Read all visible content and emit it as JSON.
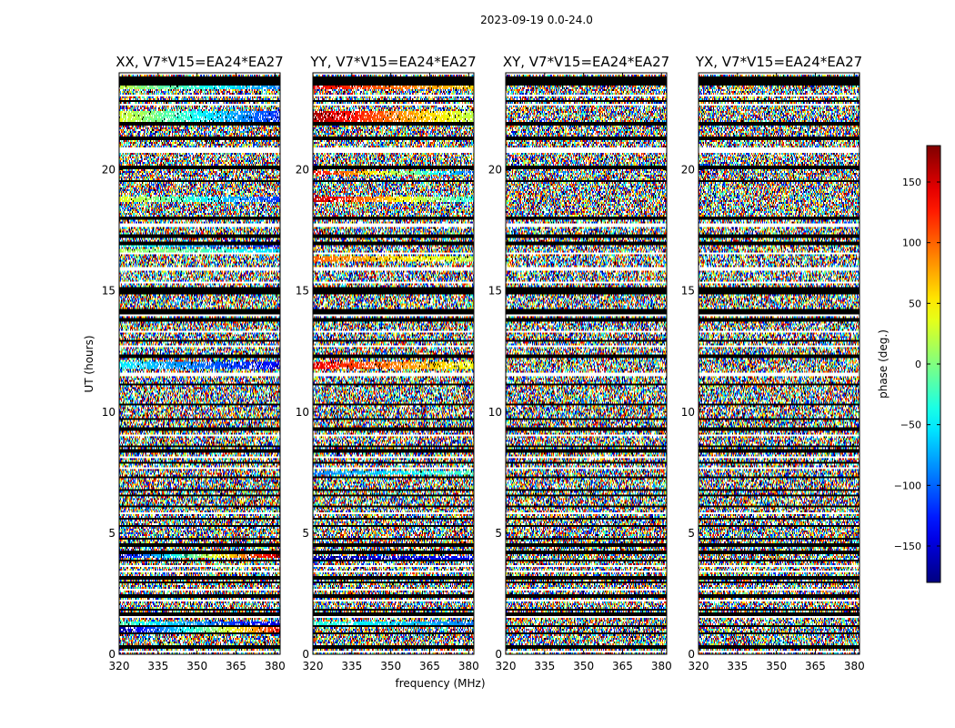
{
  "chart_data": {
    "type": "heatmap",
    "title": "2023-09-19 0.0-24.0",
    "xlabel": "frequency (MHz)",
    "ylabel": "UT (hours)",
    "xlim": [
      320,
      382
    ],
    "ylim": [
      0,
      24
    ],
    "xticks": [
      320,
      335,
      350,
      365,
      380
    ],
    "yticks": [
      0,
      5,
      10,
      15,
      20
    ],
    "colorbar": {
      "label": "phase (deg.)",
      "range": [
        -180,
        180
      ],
      "ticks": [
        150,
        100,
        50,
        0,
        -50,
        -100,
        -150
      ],
      "tick_labels": [
        "150",
        "100",
        "50",
        "0",
        "−50",
        "−100",
        "−150"
      ],
      "colormap": "jet"
    },
    "panels": [
      {
        "title": "XX, V7*V15=EA24*EA27",
        "coherent_bands": [
          {
            "t0": 23.3,
            "t1": 23.5,
            "p0": 20,
            "p1": -90
          },
          {
            "t0": 22.0,
            "t1": 22.4,
            "p0": 30,
            "p1": -120
          },
          {
            "t0": 18.7,
            "t1": 18.9,
            "p0": 40,
            "p1": -120
          },
          {
            "t0": 16.8,
            "t1": 17.0,
            "p0": -30,
            "p1": -130
          },
          {
            "t0": 16.6,
            "t1": 16.75,
            "p0": 20,
            "p1": -60
          },
          {
            "t0": 11.8,
            "t1": 12.1,
            "p0": -50,
            "p1": -140
          },
          {
            "t0": 3.95,
            "t1": 4.1,
            "p0": -150,
            "p1": 160
          },
          {
            "t0": 1.2,
            "t1": 1.35,
            "p0": -20,
            "p1": -150
          },
          {
            "t0": 0.9,
            "t1": 1.1,
            "p0": -170,
            "p1": 130
          }
        ]
      },
      {
        "title": "YY, V7*V15=EA24*EA27",
        "coherent_bands": [
          {
            "t0": 23.3,
            "t1": 23.5,
            "p0": 140,
            "p1": 60
          },
          {
            "t0": 22.0,
            "t1": 22.4,
            "p0": 165,
            "p1": 20
          },
          {
            "t0": 19.8,
            "t1": 19.95,
            "p0": 140,
            "p1": -100
          },
          {
            "t0": 18.7,
            "t1": 18.9,
            "p0": 160,
            "p1": -40
          },
          {
            "t0": 16.2,
            "t1": 16.4,
            "p0": 100,
            "p1": 20
          },
          {
            "t0": 11.8,
            "t1": 12.1,
            "p0": 140,
            "p1": 40
          },
          {
            "t0": 7.4,
            "t1": 7.55,
            "p0": -90,
            "p1": -20
          },
          {
            "t0": 3.9,
            "t1": 4.05,
            "p0": -160,
            "p1": -130
          },
          {
            "t0": 1.2,
            "t1": 1.35,
            "p0": -30,
            "p1": -90
          }
        ]
      },
      {
        "title": "XY, V7*V15=EA24*EA27",
        "coherent_bands": []
      },
      {
        "title": "YX, V7*V15=EA24*EA27",
        "coherent_bands": []
      }
    ],
    "gaps": [
      [
        23.95,
        24.0
      ],
      [
        23.05,
        23.12
      ],
      [
        22.65,
        22.72
      ],
      [
        20.7,
        20.9
      ],
      [
        20.3,
        20.35
      ],
      [
        17.6,
        17.75
      ],
      [
        16.5,
        16.55
      ],
      [
        15.85,
        15.95
      ],
      [
        15.3,
        15.38
      ],
      [
        13.95,
        14.0
      ],
      [
        13.25,
        13.35
      ],
      [
        12.7,
        12.78
      ],
      [
        11.5,
        11.6
      ],
      [
        10.55,
        10.6
      ],
      [
        9.0,
        9.05
      ],
      [
        8.1,
        8.15
      ],
      [
        7.65,
        7.72
      ],
      [
        6.95,
        7.0
      ],
      [
        5.8,
        5.88
      ],
      [
        5.0,
        5.05
      ],
      [
        3.6,
        3.68
      ],
      [
        3.35,
        3.42
      ],
      [
        2.6,
        2.68
      ],
      [
        2.15,
        2.25
      ],
      [
        1.48,
        1.55
      ],
      [
        0.5,
        0.55
      ],
      [
        0.05,
        0.12
      ]
    ],
    "flagged_lines": [
      23.8,
      23.7,
      23.55,
      22.85,
      21.9,
      21.3,
      20.1,
      19.55,
      18.0,
      17.3,
      17.2,
      16.95,
      15.1,
      15.0,
      14.9,
      14.2,
      14.1,
      13.8,
      12.95,
      12.3,
      11.15,
      10.3,
      9.7,
      9.3,
      8.6,
      8.4,
      7.9,
      7.3,
      6.8,
      6.55,
      6.1,
      5.6,
      5.3,
      4.75,
      4.5,
      4.2,
      3.85,
      3.15,
      2.95,
      2.4,
      1.85,
      1.65,
      1.15,
      0.85,
      0.3
    ]
  }
}
